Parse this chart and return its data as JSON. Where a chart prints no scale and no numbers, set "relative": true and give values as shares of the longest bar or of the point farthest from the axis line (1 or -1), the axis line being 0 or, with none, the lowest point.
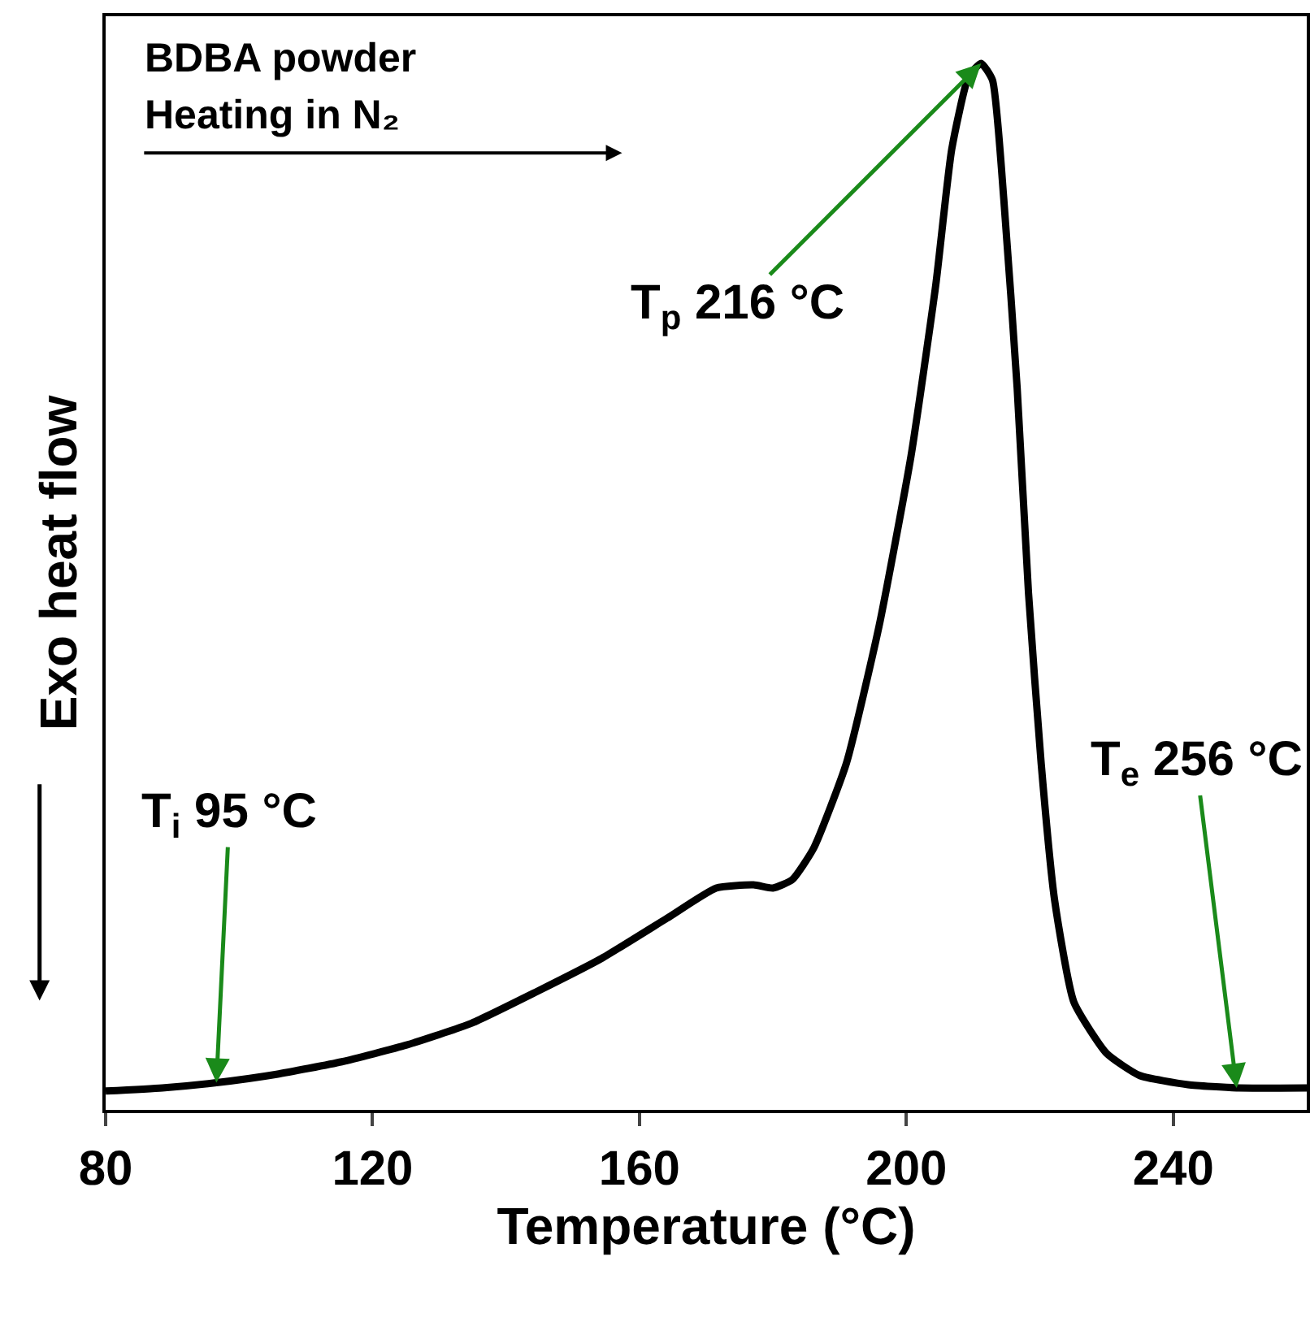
{
  "chart_data": {
    "type": "line",
    "title": "BDBA powder",
    "xlabel": "Temperature (°C)",
    "ylabel": "Exo heat flow",
    "relative": true,
    "xlim": [
      80,
      260
    ],
    "xticks": [
      80,
      120,
      160,
      200,
      240
    ],
    "grid": false,
    "legend": false,
    "marker": "none",
    "line_style": "solid",
    "x": [
      80.0,
      88.5,
      96.6,
      105.6,
      115.4,
      125.1,
      134.9,
      144.6,
      154.4,
      164.1,
      171.5,
      177.1,
      180.0,
      182.9,
      186.1,
      191.0,
      195.9,
      200.7,
      204.4,
      206.8,
      209.3,
      211.2,
      212.9,
      214.6,
      216.6,
      218.3,
      220.2,
      222.2,
      225.1,
      230.0,
      234.9,
      242.2,
      249.5,
      260.0
    ],
    "series": [
      {
        "color": "#000000",
        "values": [
          0.018,
          0.021,
          0.026,
          0.034,
          0.046,
          0.062,
          0.083,
          0.113,
          0.145,
          0.183,
          0.212,
          0.215,
          0.212,
          0.22,
          0.25,
          0.331,
          0.462,
          0.625,
          0.788,
          0.918,
          0.987,
          1.0,
          0.984,
          0.87,
          0.69,
          0.494,
          0.331,
          0.201,
          0.103,
          0.054,
          0.033,
          0.024,
          0.021,
          0.021
        ]
      }
    ],
    "annotations": [
      "Heating in N₂",
      {
        "text": "T$_{p}$ 216 °C",
        "x": 211.2,
        "y": 1.0
      },
      {
        "text": "T$_{i}$ 95 °C",
        "x": 96.6,
        "y": 0.026
      },
      {
        "text": "T$_{e}$ 256 °C",
        "x": 249.5,
        "y": 0.021
      }
    ]
  }
}
